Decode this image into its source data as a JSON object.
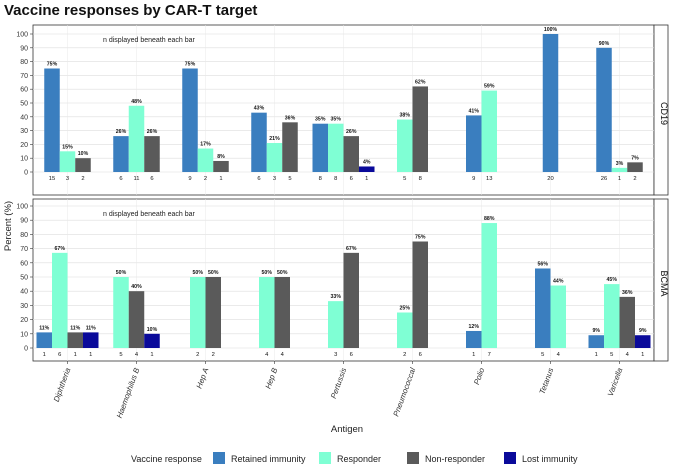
{
  "chart_data": {
    "type": "bar",
    "title": "Vaccine responses by CAR-T target",
    "xlabel": "Antigen",
    "ylabel": "Percent (%)",
    "ylim": [
      0,
      100
    ],
    "yticks": [
      0,
      10,
      20,
      30,
      40,
      50,
      60,
      70,
      80,
      90,
      100
    ],
    "grid": true,
    "note": "n displayed beneath each bar",
    "categories": [
      "Diphtheria",
      "Haemophilus B",
      "Hep A",
      "Hep B",
      "Pertussis",
      "Pneumococcal",
      "Polio",
      "Tetanus",
      "Varicella"
    ],
    "legend": {
      "title": "Vaccine response",
      "position": "bottom",
      "entries": [
        {
          "name": "Retained immunity",
          "color": "#3a7ebf"
        },
        {
          "name": "Responder",
          "color": "#7fffd4"
        },
        {
          "name": "Non-responder",
          "color": "#5a5a5a"
        },
        {
          "name": "Lost immunity",
          "color": "#0a0a9a"
        }
      ]
    },
    "panels": [
      {
        "name": "CD19",
        "series": [
          {
            "name": "Retained immunity",
            "values": [
              75,
              26,
              75,
              43,
              35,
              null,
              41,
              100,
              90
            ],
            "n": [
              15,
              6,
              9,
              6,
              8,
              null,
              9,
              20,
              26
            ],
            "labels": [
              "75%",
              "26%",
              "75%",
              "43%",
              "35%",
              null,
              "41%",
              "100%",
              "90%"
            ]
          },
          {
            "name": "Responder",
            "values": [
              15,
              48,
              17,
              21,
              35,
              38,
              59,
              null,
              3
            ],
            "n": [
              3,
              11,
              2,
              3,
              8,
              5,
              13,
              null,
              1
            ],
            "labels": [
              "15%",
              "48%",
              "17%",
              "21%",
              "35%",
              "38%",
              "59%",
              null,
              "3%"
            ]
          },
          {
            "name": "Non-responder",
            "values": [
              10,
              26,
              8,
              36,
              26,
              62,
              null,
              null,
              7
            ],
            "n": [
              2,
              6,
              1,
              5,
              6,
              8,
              null,
              null,
              2
            ],
            "labels": [
              "10%",
              "26%",
              "8%",
              "36%",
              "26%",
              "62%",
              null,
              null,
              "7%"
            ]
          },
          {
            "name": "Lost immunity",
            "values": [
              null,
              null,
              null,
              null,
              4,
              null,
              null,
              null,
              null
            ],
            "n": [
              null,
              null,
              null,
              null,
              1,
              null,
              null,
              null,
              null
            ],
            "labels": [
              null,
              null,
              null,
              null,
              "4%",
              null,
              null,
              null,
              null
            ]
          }
        ]
      },
      {
        "name": "BCMA",
        "series": [
          {
            "name": "Retained immunity",
            "values": [
              11,
              null,
              null,
              null,
              null,
              null,
              12,
              56,
              9
            ],
            "n": [
              1,
              null,
              null,
              null,
              null,
              null,
              1,
              5,
              1
            ],
            "labels": [
              "11%",
              null,
              null,
              null,
              null,
              null,
              "12%",
              "56%",
              "9%"
            ]
          },
          {
            "name": "Responder",
            "values": [
              67,
              50,
              50,
              50,
              33,
              25,
              88,
              44,
              45
            ],
            "n": [
              6,
              5,
              2,
              4,
              3,
              2,
              7,
              4,
              5
            ],
            "labels": [
              "67%",
              "50%",
              "50%",
              "50%",
              "33%",
              "25%",
              "88%",
              "44%",
              "45%"
            ]
          },
          {
            "name": "Non-responder",
            "values": [
              11,
              40,
              50,
              50,
              67,
              75,
              null,
              null,
              36
            ],
            "n": [
              1,
              4,
              2,
              4,
              6,
              6,
              null,
              null,
              4
            ],
            "labels": [
              "11%",
              "40%",
              "50%",
              "50%",
              "67%",
              "75%",
              null,
              null,
              "36%"
            ]
          },
          {
            "name": "Lost immunity",
            "values": [
              11,
              10,
              null,
              null,
              null,
              null,
              null,
              null,
              9
            ],
            "n": [
              1,
              1,
              null,
              null,
              null,
              null,
              null,
              null,
              1
            ],
            "labels": [
              "11%",
              "10%",
              null,
              null,
              null,
              null,
              null,
              null,
              "9%"
            ]
          }
        ]
      }
    ]
  }
}
